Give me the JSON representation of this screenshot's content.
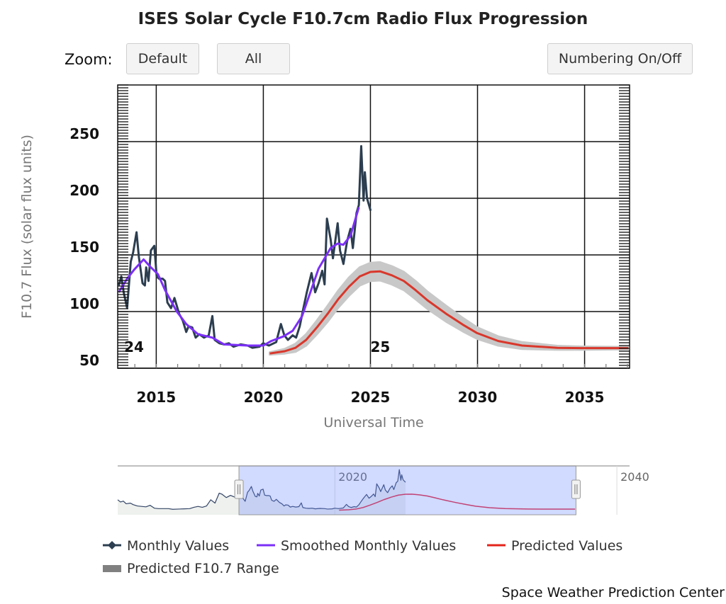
{
  "header": {
    "title": "ISES Solar Cycle F10.7cm Radio Flux Progression",
    "zoom_label": "Zoom:",
    "buttons": {
      "default": "Default",
      "all": "All",
      "numbering": "Numbering On/Off"
    }
  },
  "footer": {
    "credit": "Space Weather Prediction Center"
  },
  "colors": {
    "monthly": "#2c3e50",
    "smoothed": "#7b2ff7",
    "predicted": "#d9372b",
    "range": "#c8c8c8",
    "navigator_selection": "#ccd3fb"
  },
  "chart_data": {
    "type": "line",
    "title": "ISES Solar Cycle F10.7cm Radio Flux Progression",
    "xlabel": "Universal Time",
    "ylabel": "F10.7 Flux (solar flux units)",
    "xlim": [
      2013.2,
      2037.1
    ],
    "ylim": [
      50,
      300
    ],
    "x_ticks": [
      "2015",
      "2020",
      "2025",
      "2030",
      "2035"
    ],
    "y_ticks": [
      "50",
      "100",
      "150",
      "200",
      "250"
    ],
    "grid": true,
    "legend_position": "bottom",
    "cycle_labels": [
      {
        "label": "24",
        "x": 2013.5
      },
      {
        "label": "25",
        "x": 2025.0
      }
    ],
    "legend": [
      "Monthly Values",
      "Smoothed Monthly Values",
      "Predicted Values",
      "Predicted F10.7 Range"
    ],
    "series": [
      {
        "name": "Monthly Values",
        "points": [
          [
            2013.25,
            123
          ],
          [
            2013.37,
            131
          ],
          [
            2013.48,
            117
          ],
          [
            2013.64,
            103
          ],
          [
            2013.81,
            144
          ],
          [
            2013.92,
            152
          ],
          [
            2014.08,
            170
          ],
          [
            2014.19,
            148
          ],
          [
            2014.36,
            125
          ],
          [
            2014.47,
            123
          ],
          [
            2014.53,
            139
          ],
          [
            2014.64,
            127
          ],
          [
            2014.75,
            154
          ],
          [
            2014.91,
            158
          ],
          [
            2015.02,
            131
          ],
          [
            2015.13,
            129
          ],
          [
            2015.3,
            129
          ],
          [
            2015.41,
            127
          ],
          [
            2015.52,
            108
          ],
          [
            2015.69,
            103
          ],
          [
            2015.85,
            112
          ],
          [
            2016.07,
            98
          ],
          [
            2016.24,
            92
          ],
          [
            2016.4,
            82
          ],
          [
            2016.51,
            87
          ],
          [
            2016.68,
            86
          ],
          [
            2016.84,
            77
          ],
          [
            2017.01,
            80
          ],
          [
            2017.23,
            77
          ],
          [
            2017.45,
            79
          ],
          [
            2017.62,
            96
          ],
          [
            2017.73,
            75
          ],
          [
            2017.95,
            72
          ],
          [
            2018.17,
            71
          ],
          [
            2018.39,
            72
          ],
          [
            2018.61,
            69
          ],
          [
            2018.94,
            71
          ],
          [
            2019.27,
            70
          ],
          [
            2019.49,
            68
          ],
          [
            2019.82,
            69
          ],
          [
            2019.99,
            72
          ],
          [
            2020.26,
            70
          ],
          [
            2020.6,
            73
          ],
          [
            2020.82,
            89
          ],
          [
            2020.98,
            79
          ],
          [
            2021.15,
            75
          ],
          [
            2021.37,
            79
          ],
          [
            2021.53,
            77
          ],
          [
            2021.7,
            87
          ],
          [
            2021.86,
            102
          ],
          [
            2022.03,
            117
          ],
          [
            2022.25,
            134
          ],
          [
            2022.42,
            117
          ],
          [
            2022.58,
            125
          ],
          [
            2022.75,
            136
          ],
          [
            2022.86,
            124
          ],
          [
            2022.97,
            182
          ],
          [
            2023.14,
            164
          ],
          [
            2023.25,
            147
          ],
          [
            2023.47,
            178
          ],
          [
            2023.58,
            154
          ],
          [
            2023.74,
            142
          ],
          [
            2023.91,
            162
          ],
          [
            2024.07,
            173
          ],
          [
            2024.18,
            156
          ],
          [
            2024.35,
            187
          ],
          [
            2024.46,
            194
          ],
          [
            2024.57,
            246
          ],
          [
            2024.68,
            198
          ],
          [
            2024.74,
            223
          ],
          [
            2024.84,
            200
          ],
          [
            2025.01,
            189
          ]
        ]
      },
      {
        "name": "Smoothed Monthly Values",
        "points": [
          [
            2013.25,
            117
          ],
          [
            2013.64,
            129
          ],
          [
            2013.97,
            137
          ],
          [
            2014.41,
            146
          ],
          [
            2014.75,
            139
          ],
          [
            2015.08,
            133
          ],
          [
            2015.41,
            119
          ],
          [
            2015.96,
            100
          ],
          [
            2016.4,
            89
          ],
          [
            2016.95,
            80
          ],
          [
            2017.62,
            77
          ],
          [
            2018.17,
            71
          ],
          [
            2019.27,
            70
          ],
          [
            2020.0,
            70
          ],
          [
            2020.37,
            74
          ],
          [
            2020.93,
            78
          ],
          [
            2021.37,
            83
          ],
          [
            2021.81,
            96
          ],
          [
            2022.14,
            114
          ],
          [
            2022.58,
            138
          ],
          [
            2023.14,
            156
          ],
          [
            2023.47,
            160
          ],
          [
            2023.74,
            159
          ],
          [
            2024.07,
            167
          ],
          [
            2024.46,
            192
          ]
        ]
      },
      {
        "name": "Predicted Values",
        "points": [
          [
            2020.3,
            63
          ],
          [
            2021.0,
            65
          ],
          [
            2021.5,
            68
          ],
          [
            2022.0,
            75
          ],
          [
            2022.5,
            86
          ],
          [
            2023.0,
            98
          ],
          [
            2023.5,
            111
          ],
          [
            2024.0,
            122
          ],
          [
            2024.5,
            131
          ],
          [
            2025.0,
            135
          ],
          [
            2025.45,
            135.5
          ],
          [
            2026.0,
            132
          ],
          [
            2026.56,
            127
          ],
          [
            2027.1,
            119
          ],
          [
            2027.66,
            110
          ],
          [
            2028.54,
            98
          ],
          [
            2029.31,
            88.5
          ],
          [
            2029.98,
            81
          ],
          [
            2030.97,
            74
          ],
          [
            2032.08,
            70
          ],
          [
            2033.73,
            68
          ],
          [
            2034.83,
            67.7
          ],
          [
            2037.04,
            67.7
          ]
        ]
      },
      {
        "name": "Predicted F10.7 Range",
        "half_width": [
          [
            2020.3,
            1
          ],
          [
            2021.0,
            2
          ],
          [
            2022.0,
            5
          ],
          [
            2023.0,
            7
          ],
          [
            2024.0,
            8
          ],
          [
            2025.45,
            8
          ],
          [
            2027.0,
            8
          ],
          [
            2028.5,
            7
          ],
          [
            2030.0,
            5
          ],
          [
            2032.0,
            3
          ],
          [
            2034.0,
            1.5
          ],
          [
            2037.04,
            1
          ]
        ]
      }
    ],
    "navigator": {
      "x_labels": [
        "2020",
        "2040"
      ],
      "xlim": [
        2004.6,
        2040.9
      ],
      "selection": [
        2013.2,
        2037.1
      ],
      "history": [
        [
          2004.6,
          110
        ],
        [
          2004.8,
          100
        ],
        [
          2005.0,
          104
        ],
        [
          2005.2,
          92
        ],
        [
          2005.5,
          95
        ],
        [
          2005.7,
          88
        ],
        [
          2006.0,
          82
        ],
        [
          2006.3,
          80
        ],
        [
          2006.6,
          78
        ],
        [
          2006.9,
          85
        ],
        [
          2007.2,
          72
        ],
        [
          2007.5,
          70
        ],
        [
          2007.8,
          70
        ],
        [
          2008.2,
          70
        ],
        [
          2008.5,
          67
        ],
        [
          2008.9,
          68
        ],
        [
          2009.3,
          69
        ],
        [
          2009.7,
          70
        ],
        [
          2010.0,
          76
        ],
        [
          2010.3,
          80
        ],
        [
          2010.6,
          76
        ],
        [
          2010.9,
          82
        ],
        [
          2011.2,
          110
        ],
        [
          2011.5,
          95
        ],
        [
          2011.8,
          140
        ],
        [
          2012.0,
          135
        ],
        [
          2012.3,
          120
        ],
        [
          2012.6,
          130
        ],
        [
          2012.9,
          122
        ],
        [
          2013.2,
          123
        ]
      ]
    }
  }
}
